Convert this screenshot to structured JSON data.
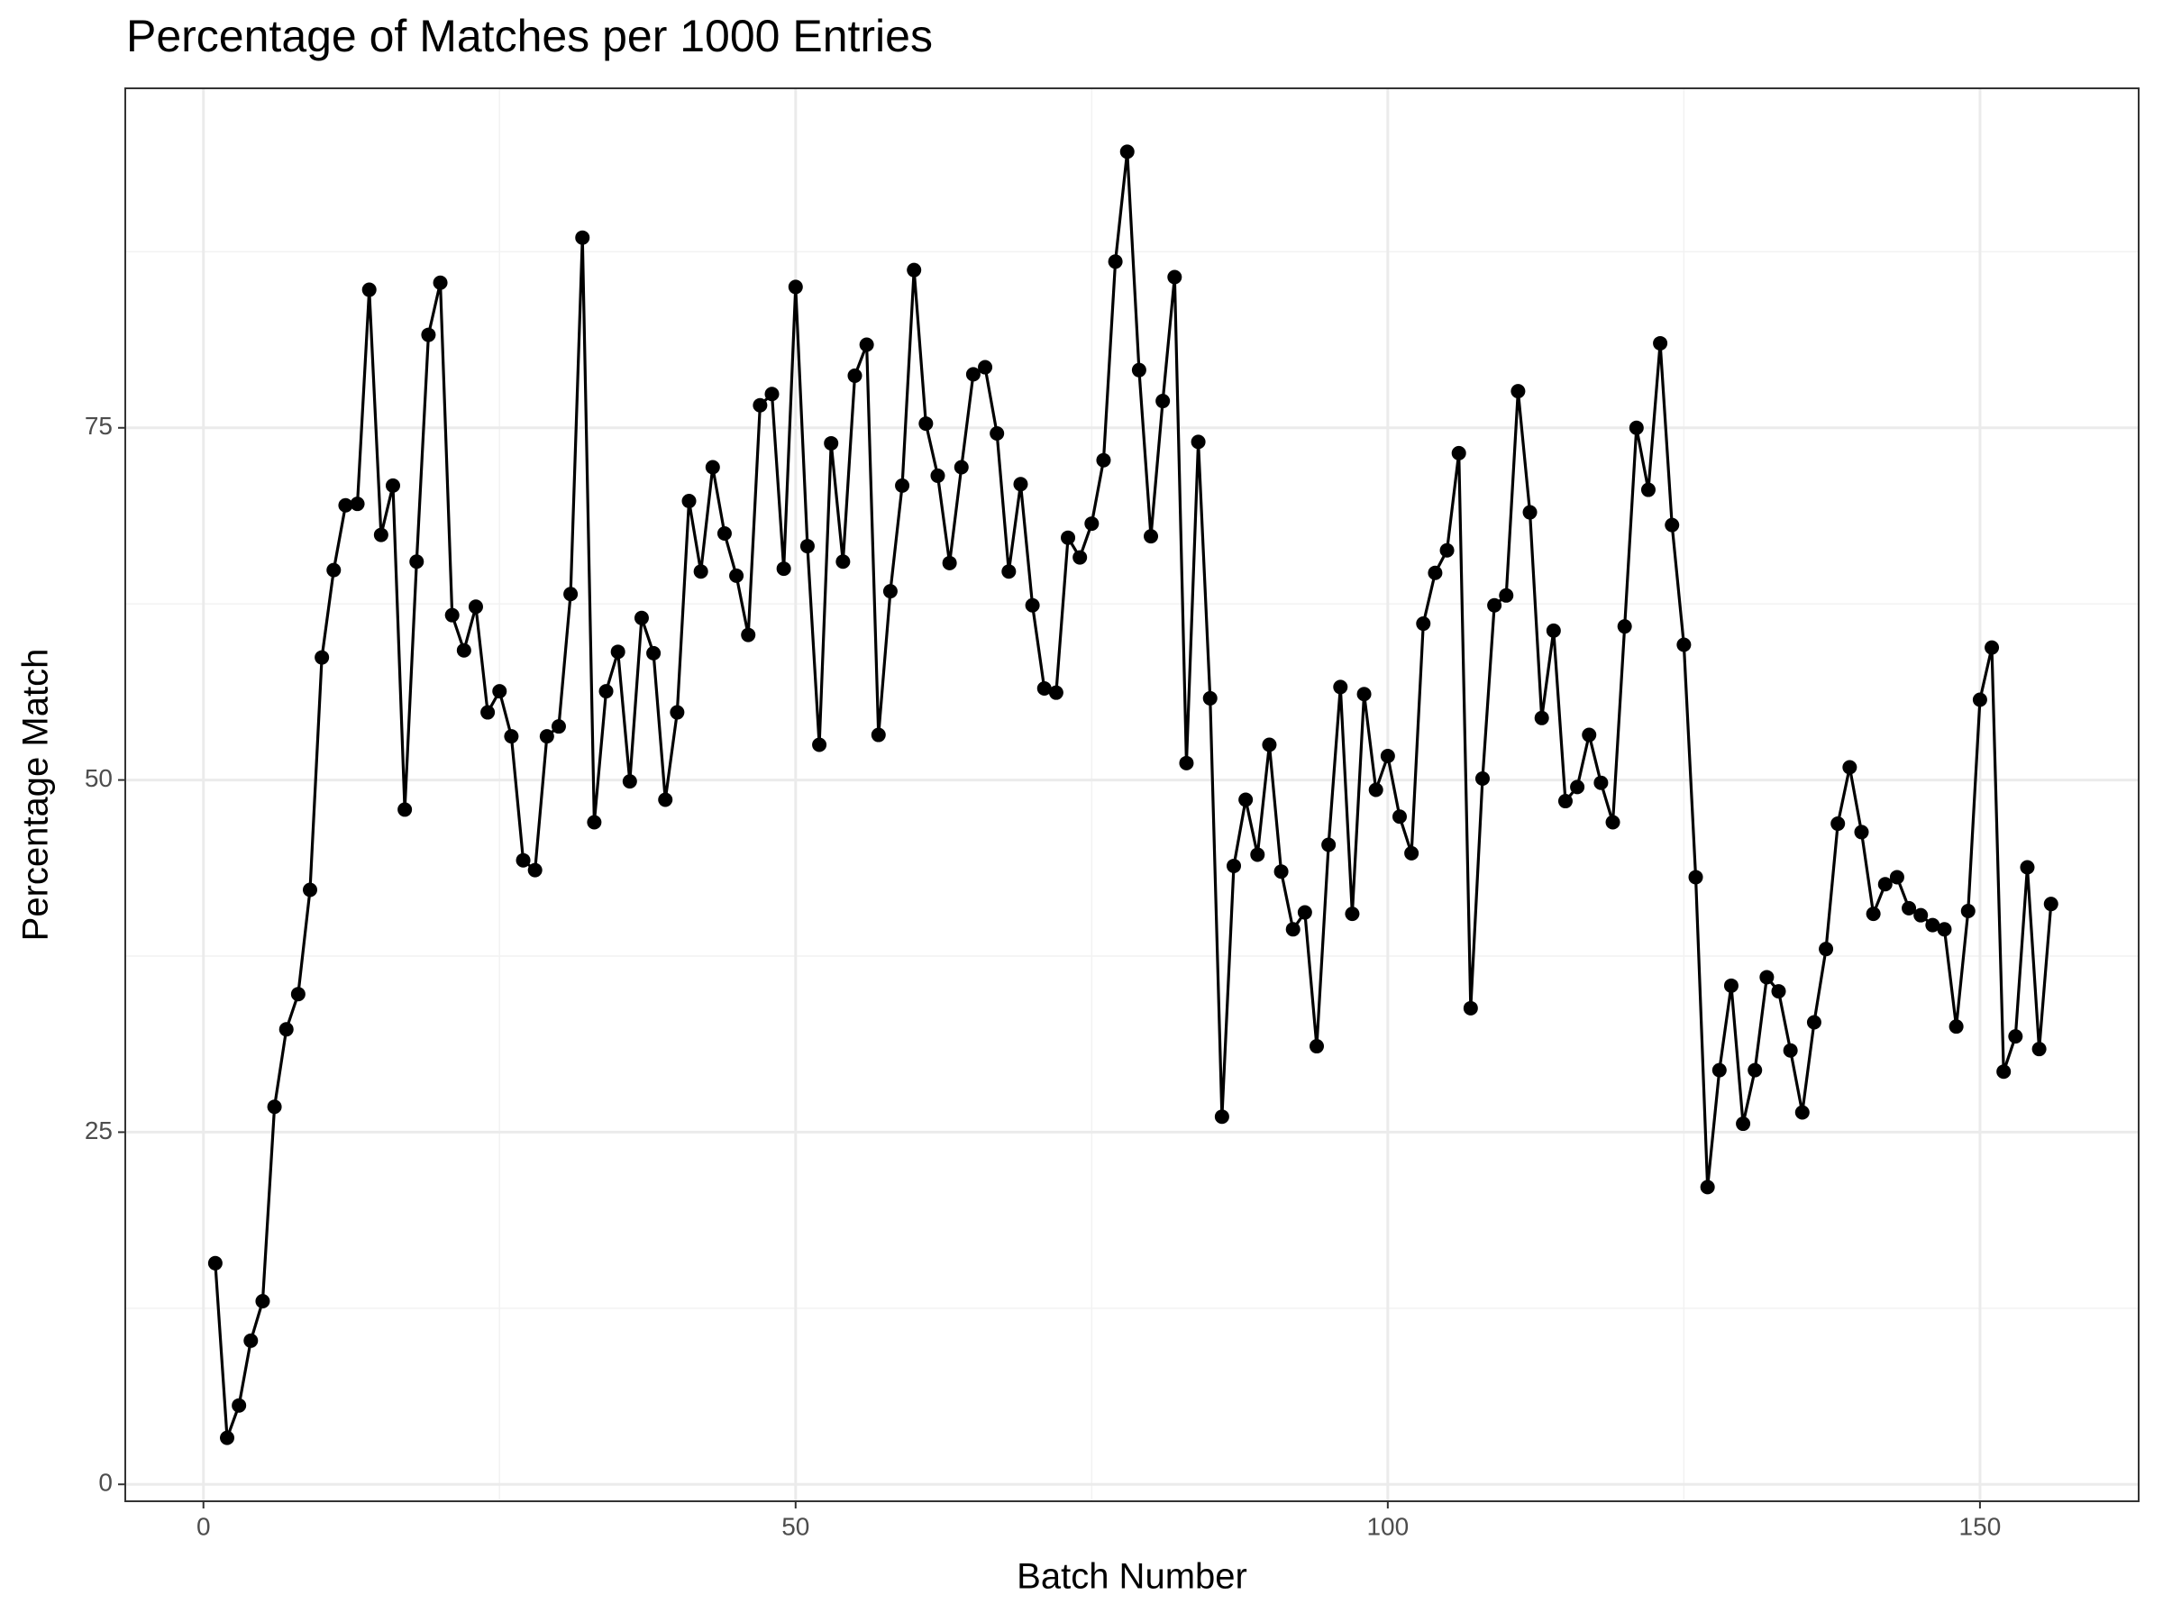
{
  "chart_data": {
    "type": "line",
    "title": "Percentage of Matches per 1000 Entries",
    "x_label": "Batch Number",
    "y_label": "Percentage Match",
    "x": [
      1,
      2,
      3,
      4,
      5,
      6,
      7,
      8,
      9,
      10,
      11,
      12,
      13,
      14,
      15,
      16,
      17,
      18,
      19,
      20,
      21,
      22,
      23,
      24,
      25,
      26,
      27,
      28,
      29,
      30,
      31,
      32,
      33,
      34,
      35,
      36,
      37,
      38,
      39,
      40,
      41,
      42,
      43,
      44,
      45,
      46,
      47,
      48,
      49,
      50,
      51,
      52,
      53,
      54,
      55,
      56,
      57,
      58,
      59,
      60,
      61,
      62,
      63,
      64,
      65,
      66,
      67,
      68,
      69,
      70,
      71,
      72,
      73,
      74,
      75,
      76,
      77,
      78,
      79,
      80,
      81,
      82,
      83,
      84,
      85,
      86,
      87,
      88,
      89,
      90,
      91,
      92,
      93,
      94,
      95,
      96,
      97,
      98,
      99,
      100,
      101,
      102,
      103,
      104,
      105,
      106,
      107,
      108,
      109,
      110,
      111,
      112,
      113,
      114,
      115,
      116,
      117,
      118,
      119,
      120,
      121,
      122,
      123,
      124,
      125,
      126,
      127,
      128,
      129,
      130,
      131,
      132,
      133,
      134,
      135,
      136,
      137,
      138,
      139,
      140,
      141,
      142,
      143,
      144,
      145,
      146,
      147,
      148,
      149,
      150,
      151,
      152,
      153,
      154,
      155,
      156
    ],
    "values": [
      15.7,
      3.3,
      5.6,
      10.2,
      13.0,
      26.8,
      32.3,
      34.8,
      42.2,
      58.7,
      64.9,
      69.5,
      69.6,
      84.8,
      67.4,
      70.9,
      47.9,
      65.5,
      81.6,
      85.3,
      61.7,
      59.2,
      62.3,
      54.8,
      56.3,
      53.1,
      44.3,
      43.6,
      53.1,
      53.8,
      63.2,
      88.5,
      47.0,
      56.3,
      59.1,
      49.9,
      61.5,
      59.0,
      48.6,
      54.8,
      69.8,
      64.8,
      72.2,
      67.5,
      64.5,
      60.3,
      76.6,
      77.4,
      65.0,
      85.0,
      66.6,
      52.5,
      73.9,
      65.5,
      78.7,
      80.9,
      53.2,
      63.4,
      70.9,
      86.2,
      75.3,
      71.6,
      65.4,
      72.2,
      78.8,
      79.3,
      74.6,
      64.8,
      71.0,
      62.4,
      56.5,
      56.2,
      67.2,
      65.8,
      68.2,
      72.7,
      86.8,
      94.6,
      79.1,
      67.3,
      76.9,
      85.7,
      51.2,
      74.0,
      55.8,
      26.1,
      43.9,
      48.6,
      44.7,
      52.5,
      43.5,
      39.4,
      40.6,
      31.1,
      45.4,
      56.6,
      40.5,
      56.1,
      49.3,
      51.7,
      47.4,
      44.8,
      61.1,
      64.7,
      66.3,
      73.2,
      33.8,
      50.1,
      62.4,
      63.1,
      77.6,
      69.0,
      54.4,
      60.6,
      48.5,
      49.5,
      53.2,
      49.8,
      47.0,
      60.9,
      75.0,
      70.6,
      81.0,
      68.1,
      59.6,
      43.1,
      21.1,
      29.4,
      35.4,
      25.6,
      29.4,
      36.0,
      35.0,
      30.8,
      26.4,
      32.8,
      38.0,
      46.9,
      50.9,
      46.3,
      40.5,
      42.6,
      43.1,
      40.9,
      40.4,
      39.7,
      39.4,
      32.5,
      40.7,
      55.7,
      59.4,
      29.3,
      31.8,
      43.8,
      30.9,
      41.2
    ],
    "color": "#000000",
    "xlim": [
      -6.6,
      163.4
    ],
    "ylim": [
      -1.2,
      99.1
    ],
    "xticks": [
      0,
      50,
      100,
      150
    ],
    "yticks": [
      0,
      25,
      50,
      75
    ],
    "grid": true
  }
}
